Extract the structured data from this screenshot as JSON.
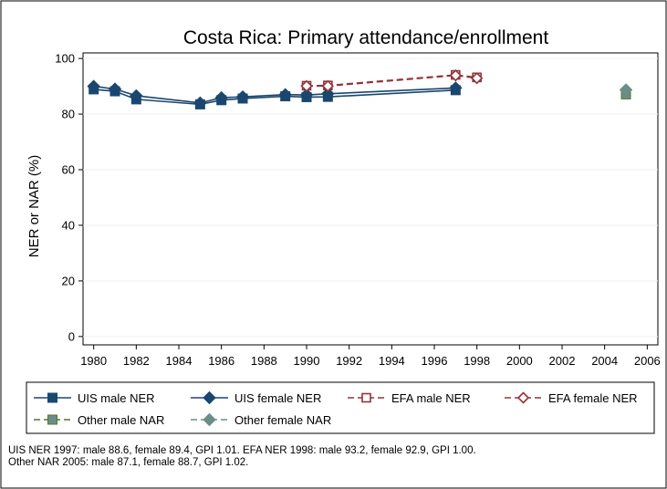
{
  "chart_data": {
    "type": "line",
    "title": "Costa Rica: Primary attendance/enrollment",
    "xlabel": "",
    "ylabel": "NER or NAR (%)",
    "xlim": [
      1979.5,
      2006.5
    ],
    "ylim": [
      -3,
      102
    ],
    "xticks": [
      "1980",
      "1982",
      "1984",
      "1986",
      "1988",
      "1990",
      "1992",
      "1994",
      "1996",
      "1998",
      "2000",
      "2002",
      "2004",
      "2006"
    ],
    "yticks": [
      "0",
      "20",
      "40",
      "60",
      "80",
      "100"
    ],
    "grid": "horizontal",
    "legend_position": "bottom",
    "series": [
      {
        "name": "UIS male NER",
        "color": "#1a476f",
        "marker": "square",
        "filled": true,
        "dashed": false,
        "x": [
          1980,
          1981,
          1982,
          1985,
          1986,
          1987,
          1989,
          1990,
          1991,
          1997
        ],
        "y": [
          88.9,
          88.2,
          85.3,
          83.5,
          85.0,
          85.6,
          86.4,
          86.1,
          86.2,
          88.6
        ]
      },
      {
        "name": "UIS female NER",
        "color": "#1a476f",
        "marker": "diamond",
        "filled": true,
        "dashed": false,
        "x": [
          1980,
          1981,
          1982,
          1985,
          1986,
          1987,
          1989,
          1990,
          1991,
          1997
        ],
        "y": [
          90.0,
          89.0,
          86.6,
          84.0,
          85.9,
          86.2,
          87.0,
          86.9,
          87.3,
          89.4
        ]
      },
      {
        "name": "EFA male NER",
        "color": "#90353b",
        "marker": "square",
        "filled": false,
        "dashed": true,
        "x": [
          1990,
          1991,
          1997,
          1998
        ],
        "y": [
          90.2,
          90.3,
          94.1,
          93.2
        ]
      },
      {
        "name": "EFA female NER",
        "color": "#90353b",
        "marker": "diamond",
        "filled": false,
        "dashed": true,
        "x": [
          1990,
          1991,
          1997,
          1998
        ],
        "y": [
          90.1,
          90.1,
          93.9,
          92.9
        ]
      },
      {
        "name": "Other male NAR",
        "color": "#55752f",
        "fill": "#6b8e86",
        "marker": "square",
        "filled": true,
        "dashed": true,
        "x": [
          2005
        ],
        "y": [
          87.1
        ]
      },
      {
        "name": "Other female NAR",
        "color": "#6b8e86",
        "marker": "diamond",
        "filled": true,
        "dashed": true,
        "x": [
          2005
        ],
        "y": [
          88.7
        ]
      }
    ],
    "caption_lines": [
      "UIS NER 1997: male 88.6, female 89.4, GPI 1.01. EFA NER 1998: male 93.2, female 92.9, GPI 1.00.",
      "Other NAR 2005: male 87.1, female 88.7, GPI 1.02."
    ]
  }
}
